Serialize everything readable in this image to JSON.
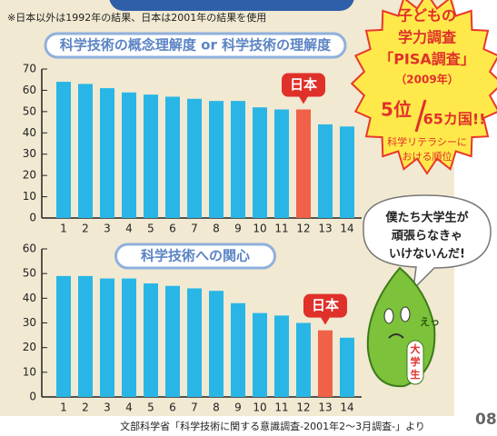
{
  "note": "※日本以外は1992年の結果、日本は2001年の結果を使用",
  "chart_data": [
    {
      "type": "bar",
      "title": "科学技術の概念理解度 or 科学技術の理解度",
      "categories": [
        "1",
        "2",
        "3",
        "4",
        "5",
        "6",
        "7",
        "8",
        "9",
        "10",
        "11",
        "12",
        "13",
        "14"
      ],
      "values": [
        64,
        63,
        61,
        59,
        58,
        57,
        56,
        55,
        55,
        52,
        51,
        51,
        44,
        43
      ],
      "colors": [
        "#29b6e6",
        "#29b6e6",
        "#29b6e6",
        "#29b6e6",
        "#29b6e6",
        "#29b6e6",
        "#29b6e6",
        "#29b6e6",
        "#29b6e6",
        "#29b6e6",
        "#29b6e6",
        "#ef6248",
        "#29b6e6",
        "#29b6e6"
      ],
      "ylim": [
        0,
        70
      ],
      "yticks": [
        0,
        10,
        20,
        30,
        40,
        50,
        60,
        70
      ],
      "annotation": {
        "text": "日本",
        "category": "12"
      }
    },
    {
      "type": "bar",
      "title": "科学技術への関心",
      "categories": [
        "1",
        "2",
        "3",
        "4",
        "5",
        "6",
        "7",
        "8",
        "9",
        "10",
        "11",
        "12",
        "13",
        "14"
      ],
      "values": [
        49,
        49,
        48,
        48,
        46,
        45,
        44,
        43,
        38,
        34,
        33,
        30,
        27,
        24
      ],
      "colors": [
        "#29b6e6",
        "#29b6e6",
        "#29b6e6",
        "#29b6e6",
        "#29b6e6",
        "#29b6e6",
        "#29b6e6",
        "#29b6e6",
        "#29b6e6",
        "#29b6e6",
        "#29b6e6",
        "#29b6e6",
        "#ef6248",
        "#29b6e6"
      ],
      "ylim": [
        0,
        60
      ],
      "yticks": [
        0,
        10,
        20,
        30,
        40,
        50,
        60
      ],
      "annotation": {
        "text": "日本",
        "category": "13"
      }
    }
  ],
  "badge": {
    "lines": [
      "子どもの",
      "学力調査",
      "「PISA調査」",
      "（2009年）"
    ],
    "rank": "5位",
    "total": "65カ国!!",
    "caption": [
      "科学リテラシーに",
      "おける順位"
    ]
  },
  "bubble": [
    "僕たち大学生が",
    "頑張らなきゃ",
    "いけないんだ!"
  ],
  "character": {
    "shout": "えっ",
    "badge": [
      "大",
      "学",
      "生"
    ]
  },
  "source": "文部科学省「科学技術に関する意識調査-2001年2～3月調査-」より",
  "page_number": "08"
}
